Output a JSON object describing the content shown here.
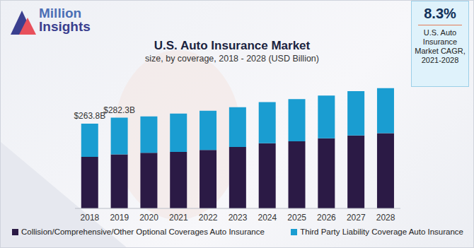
{
  "chart_data": {
    "type": "bar",
    "stacked": true,
    "title": "U.S. Auto Insurance Market",
    "subtitle": "size, by coverage, 2018 - 2028 (USD Billion)",
    "categories": [
      "2018",
      "2019",
      "2020",
      "2021",
      "2022",
      "2023",
      "2024",
      "2025",
      "2026",
      "2027",
      "2028"
    ],
    "series": [
      {
        "name": "Collision/Comprehensive/Other Optional Coverages Auto Insurance",
        "color": "#2b1a45",
        "values": [
          160.5,
          168.0,
          173,
          176,
          182,
          191,
          203,
          209,
          218,
          227,
          234
        ]
      },
      {
        "name": "Third Party Liability Coverage Auto Insurance",
        "color": "#1a9dd1",
        "values": [
          103.3,
          114.3,
          113,
          119,
          122,
          124,
          128,
          131,
          133,
          138,
          140
        ]
      }
    ],
    "total_labels": [
      {
        "category": "2018",
        "value": 263.8,
        "label": "$263.8B"
      },
      {
        "category": "2019",
        "value": 282.3,
        "label": "$282.3B"
      }
    ],
    "ylim": [
      0,
      400
    ],
    "yticks": [],
    "tick_labels": "x",
    "grid": false,
    "legend": "bottom",
    "callout": {
      "value": 8.3,
      "label": "8.3%",
      "text": "U.S. Auto Insurance Market CAGR, 2021-2028"
    }
  },
  "brand": [
    "Million",
    "Insights"
  ]
}
